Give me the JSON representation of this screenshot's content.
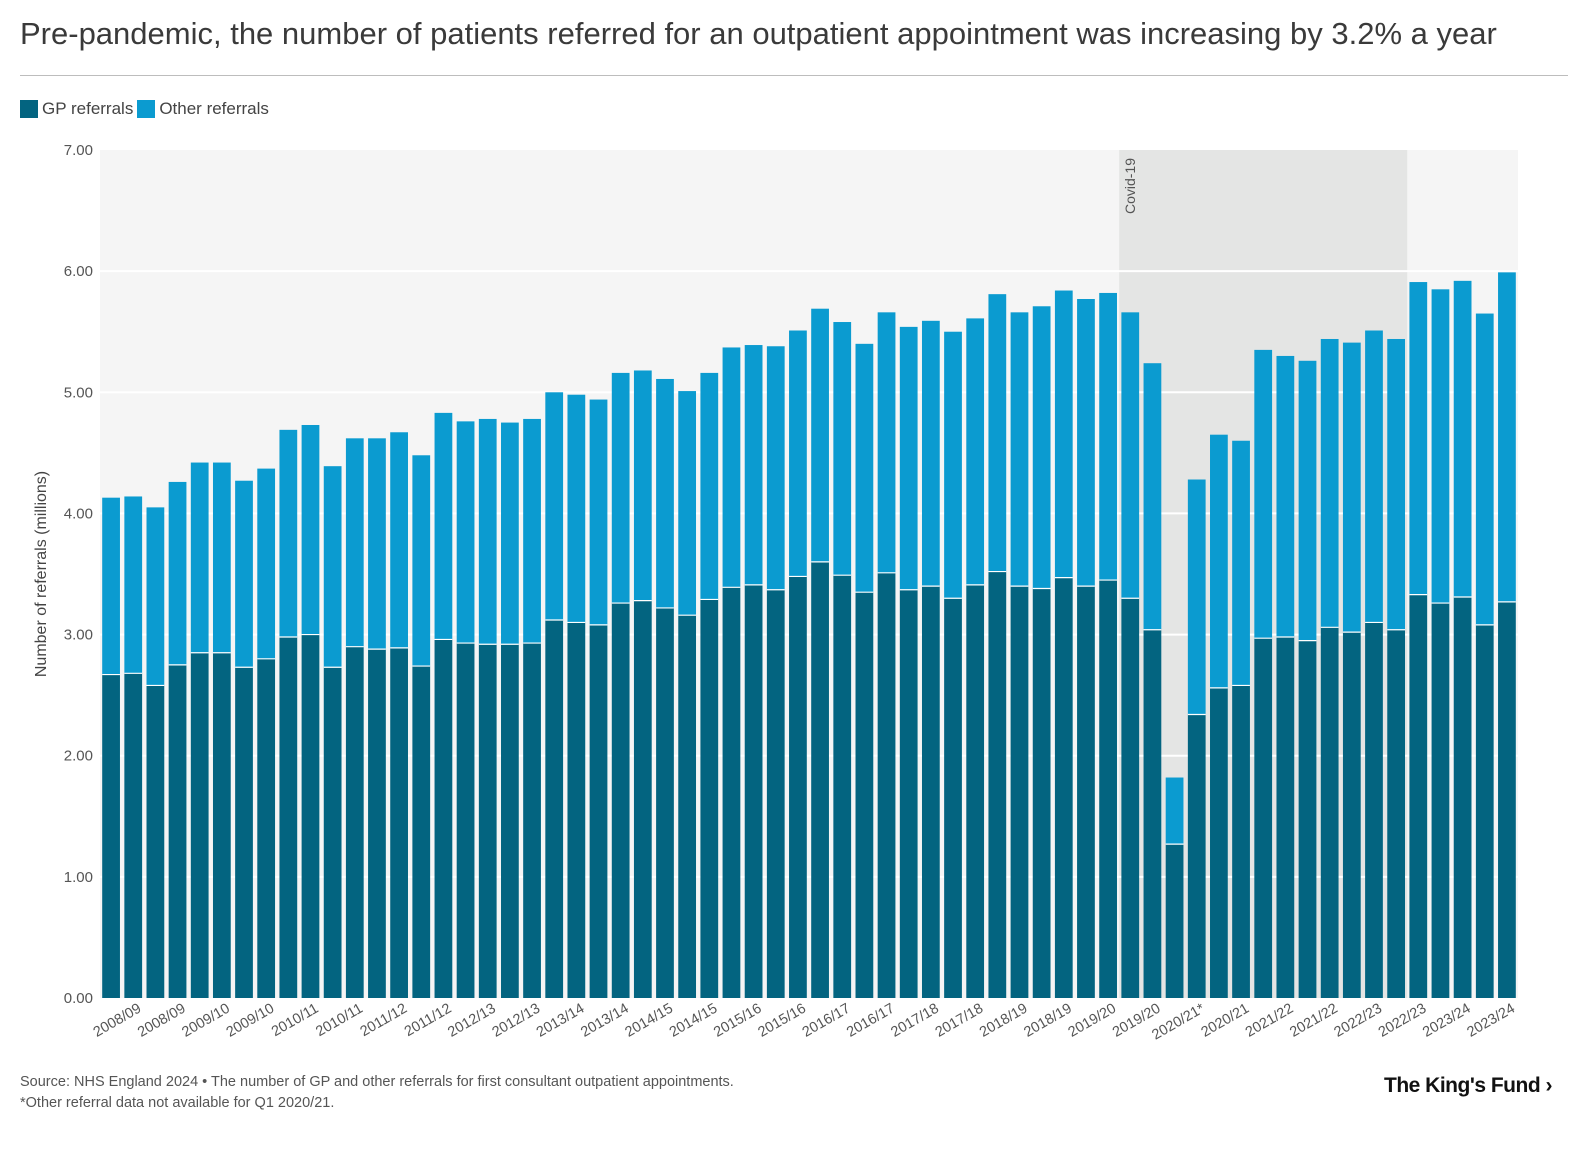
{
  "title": "Pre-pandemic, the number of patients referred for an outpatient appointment was increasing by 3.2% a year",
  "colors": {
    "gp": "#036480",
    "other": "#0b9bd0",
    "plot_bg": "#f5f5f5",
    "shade_bg": "#e4e5e4",
    "grid": "#ffffff"
  },
  "legend": {
    "gp_label": "GP referrals",
    "other_label": "Other referrals"
  },
  "footer": {
    "source": "Source: NHS England 2024 • The number of GP and other referrals for first consultant outpatient appointments.",
    "note": "*Other referral data not available for Q1 2020/21."
  },
  "brand": "The King's Fund ›",
  "chart_data": {
    "type": "bar",
    "stacked": true,
    "title": "Pre-pandemic, the number of patients referred for an outpatient appointment was increasing by 3.2% a year",
    "xlabel": "",
    "ylabel": "Number of referrals (millions)",
    "ylim": [
      0,
      7
    ],
    "yticks": [
      "0.00",
      "1.00",
      "2.00",
      "3.00",
      "4.00",
      "5.00",
      "6.00",
      "7.00"
    ],
    "tick_labels": [
      "2008/09",
      "2008/09",
      "2009/10",
      "2009/10",
      "2010/11",
      "2010/11",
      "2011/12",
      "2011/12",
      "2012/13",
      "2012/13",
      "2013/14",
      "2013/14",
      "2014/15",
      "2014/15",
      "2015/16",
      "2015/16",
      "2016/17",
      "2016/17",
      "2017/18",
      "2017/18",
      "2018/19",
      "2018/19",
      "2019/20",
      "2019/20",
      "2020/21*",
      "2020/21",
      "2021/22",
      "2021/22",
      "2022/23",
      "2022/23",
      "2023/24",
      "2023/24"
    ],
    "annotation": {
      "label": "Covid-19",
      "start_bar": 46,
      "end_bar": 59
    },
    "series": [
      {
        "name": "GP referrals",
        "values": [
          2.67,
          2.68,
          2.58,
          2.75,
          2.85,
          2.85,
          2.73,
          2.8,
          2.98,
          3.0,
          2.73,
          2.9,
          2.88,
          2.89,
          2.74,
          2.96,
          2.93,
          2.92,
          2.92,
          2.93,
          3.12,
          3.1,
          3.08,
          3.26,
          3.28,
          3.22,
          3.16,
          3.29,
          3.39,
          3.41,
          3.37,
          3.48,
          3.6,
          3.49,
          3.35,
          3.51,
          3.37,
          3.4,
          3.3,
          3.41,
          3.52,
          3.4,
          3.38,
          3.47,
          3.4,
          3.45,
          3.3,
          3.04,
          1.27,
          2.34,
          2.56,
          2.58,
          2.97,
          2.98,
          2.95,
          3.06,
          3.02,
          3.1,
          3.04,
          3.33,
          3.26,
          3.31,
          3.08,
          3.27
        ]
      },
      {
        "name": "Other referrals",
        "values": [
          1.46,
          1.46,
          1.47,
          1.51,
          1.57,
          1.57,
          1.54,
          1.57,
          1.71,
          1.73,
          1.66,
          1.72,
          1.74,
          1.78,
          1.74,
          1.87,
          1.83,
          1.86,
          1.83,
          1.85,
          1.88,
          1.88,
          1.86,
          1.9,
          1.9,
          1.89,
          1.85,
          1.87,
          1.98,
          1.98,
          2.01,
          2.03,
          2.09,
          2.09,
          2.05,
          2.15,
          2.17,
          2.19,
          2.2,
          2.2,
          2.29,
          2.26,
          2.33,
          2.37,
          2.37,
          2.37,
          2.36,
          2.2,
          0.55,
          1.94,
          2.09,
          2.02,
          2.38,
          2.32,
          2.31,
          2.38,
          2.39,
          2.41,
          2.4,
          2.58,
          2.59,
          2.61,
          2.57,
          2.72
        ]
      }
    ]
  }
}
